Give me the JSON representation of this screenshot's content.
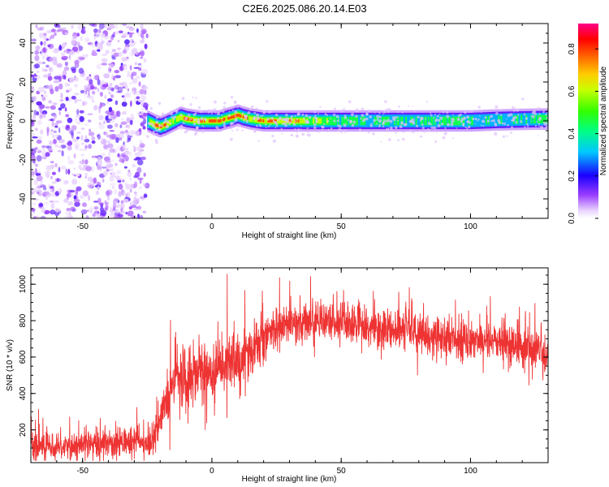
{
  "chart_data": [
    {
      "type": "heatmap",
      "title": "C2E6.2025.086.20.14.E03",
      "xlabel": "Height of straight line (km)",
      "ylabel": "Frequency (Hz)",
      "xlim": [
        -70,
        130
      ],
      "ylim": [
        -50,
        50
      ],
      "x_ticks": [
        -50,
        0,
        50,
        100
      ],
      "y_ticks": [
        -40,
        -20,
        0,
        20,
        40
      ],
      "colorbar": {
        "label": "Normalized spectral amplitude",
        "range": [
          0,
          0.92
        ],
        "ticks": [
          0.0,
          0.2,
          0.4,
          0.6,
          0.8
        ]
      },
      "noise_region": {
        "x_range": [
          -70,
          -25
        ],
        "freq_range": [
          -50,
          50
        ],
        "amplitude": 0.05
      },
      "signal_ridge": {
        "x": [
          -25,
          -22,
          -20,
          -18,
          -15,
          -12,
          -10,
          -5,
          0,
          3,
          5,
          8,
          10,
          12,
          15,
          20,
          30,
          40,
          50,
          60,
          70,
          80,
          90,
          100,
          110,
          120,
          130
        ],
        "freq": [
          0,
          -2,
          -3,
          -2,
          0,
          2,
          1,
          0,
          0,
          0,
          1,
          2,
          3,
          2,
          1,
          0,
          0,
          0,
          0,
          0,
          0,
          0,
          0,
          0,
          0.5,
          0.8,
          1
        ],
        "peak_amplitude": [
          0.4,
          0.8,
          0.9,
          0.85,
          0.6,
          0.7,
          0.85,
          0.7,
          0.88,
          0.9,
          0.75,
          0.9,
          0.92,
          0.8,
          0.6,
          0.85,
          0.75,
          0.6,
          0.5,
          0.45,
          0.5,
          0.45,
          0.5,
          0.45,
          0.4,
          0.45,
          0.5
        ]
      }
    },
    {
      "type": "line",
      "xlabel": "Height of straight line (km)",
      "ylabel": "SNR (10 * v/v)",
      "xlim": [
        -70,
        130
      ],
      "ylim": [
        20,
        1090
      ],
      "x_ticks": [
        -50,
        0,
        50,
        100
      ],
      "y_ticks": [
        200,
        400,
        600,
        800,
        1000
      ],
      "color": "#ee3333",
      "envelope": {
        "x": [
          -70,
          -50,
          -40,
          -30,
          -25,
          -22,
          -20,
          -17,
          -15,
          -12,
          -10,
          -5,
          0,
          5,
          10,
          15,
          20,
          30,
          40,
          50,
          60,
          70,
          80,
          90,
          100,
          110,
          120,
          130
        ],
        "mean": [
          110,
          120,
          125,
          130,
          135,
          180,
          280,
          380,
          440,
          520,
          470,
          530,
          510,
          550,
          580,
          620,
          720,
          780,
          800,
          790,
          760,
          750,
          730,
          700,
          700,
          690,
          650,
          600
        ],
        "spread": [
          70,
          70,
          70,
          70,
          70,
          100,
          120,
          130,
          140,
          150,
          160,
          150,
          150,
          150,
          150,
          140,
          120,
          110,
          100,
          100,
          100,
          100,
          100,
          100,
          100,
          100,
          100,
          100
        ]
      }
    }
  ]
}
